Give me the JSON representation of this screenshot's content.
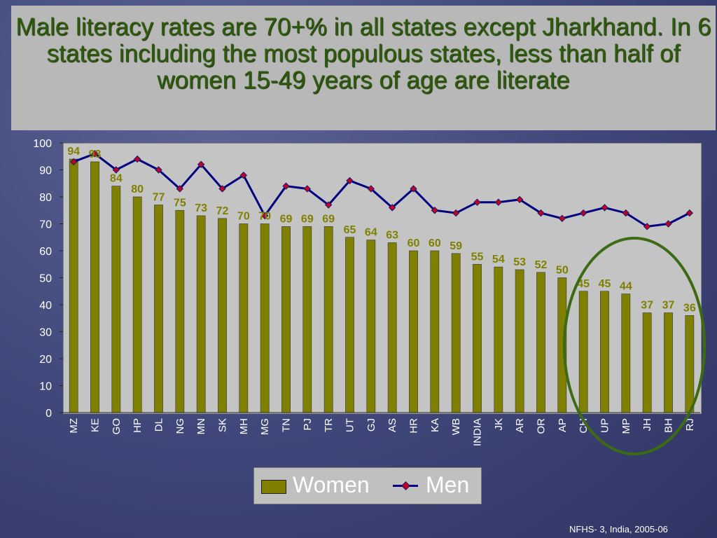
{
  "title": "Male literacy rates are 70+% in all states except Jharkhand. In 6 states including the most populous states, less than half of women 15-49 years of age are literate",
  "source": "NFHS- 3, India, 2005-06",
  "colors": {
    "women_bar": "#808000",
    "men_line": "#000080",
    "men_marker": "#c0002a",
    "data_label": "#808000",
    "highlight_ellipse": "#3d6b14"
  },
  "legend": {
    "women": "Women",
    "men": "Men"
  },
  "chart_data": {
    "type": "bar",
    "categories": [
      "MZ",
      "KE",
      "GO",
      "HP",
      "DL",
      "NG",
      "MN",
      "SK",
      "MH",
      "MG",
      "TN",
      "PJ",
      "TR",
      "UT",
      "GJ",
      "AS",
      "HR",
      "KA",
      "WB",
      "INDIA",
      "JK",
      "AR",
      "OR",
      "AP",
      "CH",
      "UP",
      "MP",
      "JH",
      "BH",
      "RJ"
    ],
    "series": [
      {
        "name": "Women",
        "type": "bar",
        "values": [
          94,
          93,
          84,
          80,
          77,
          75,
          73,
          72,
          70,
          70,
          69,
          69,
          69,
          65,
          64,
          63,
          60,
          60,
          59,
          55,
          54,
          53,
          52,
          50,
          45,
          45,
          44,
          37,
          37,
          36
        ]
      },
      {
        "name": "Men",
        "type": "line",
        "values": [
          93,
          96,
          90,
          94,
          90,
          83,
          92,
          83,
          88,
          73,
          84,
          83,
          77,
          86,
          83,
          76,
          83,
          75,
          74,
          78,
          78,
          79,
          74,
          72,
          74,
          76,
          74,
          69,
          70,
          74
        ]
      }
    ],
    "ylim": [
      0,
      100
    ],
    "yticks": [
      0,
      10,
      20,
      30,
      40,
      50,
      60,
      70,
      80,
      90,
      100
    ],
    "grid": false,
    "legend_position": "bottom",
    "annotations": [
      "ellipse highlighting the six states with female literacy below 50%"
    ]
  }
}
